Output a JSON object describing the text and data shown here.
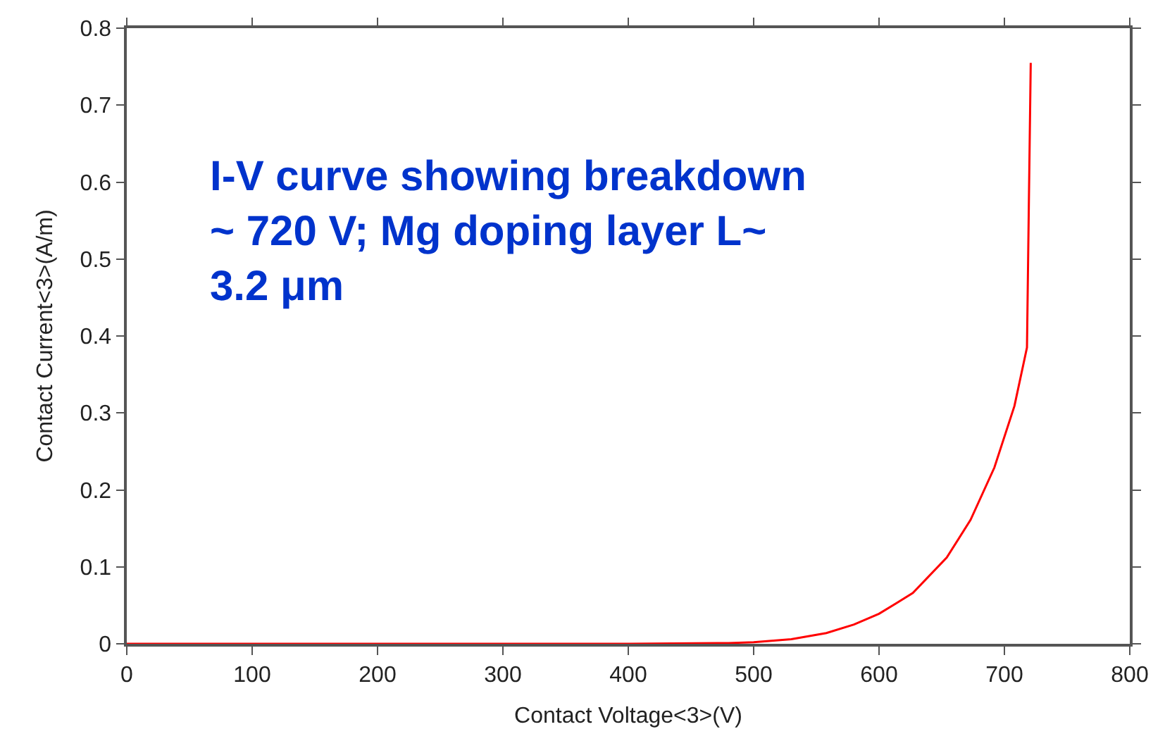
{
  "chart_data": {
    "type": "line",
    "xlabel": "Contact Voltage<3>(V)",
    "ylabel": "Contact Current<3>(A/m)",
    "annotations": [
      "I-V curve showing breakdown\n~ 720 V; Mg doping layer L~\n3.2 μm"
    ],
    "x": [
      0,
      100,
      200,
      300,
      400,
      480,
      500,
      530,
      558,
      580,
      600,
      627,
      654,
      673,
      692,
      708,
      718,
      719.5,
      721
    ],
    "series": [
      {
        "color": "#ff0000",
        "values": [
          0,
          0,
          0,
          0,
          0,
          0.001,
          0.002,
          0.006,
          0.014,
          0.025,
          0.039,
          0.066,
          0.112,
          0.161,
          0.229,
          0.309,
          0.385,
          0.572,
          0.755
        ]
      }
    ],
    "xlim": [
      0,
      800
    ],
    "xticks": [
      0,
      100,
      200,
      300,
      400,
      500,
      600,
      700,
      800
    ],
    "ylim": [
      0,
      0.8
    ],
    "yticks": [
      0,
      0.1,
      0.2,
      0.3,
      0.4,
      0.5,
      0.6,
      0.7,
      0.8
    ],
    "marker": "none",
    "line_style": "solid"
  }
}
